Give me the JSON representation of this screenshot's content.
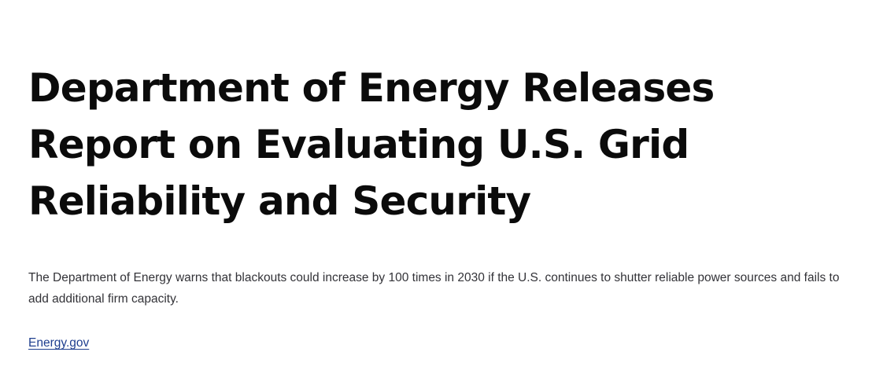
{
  "article": {
    "headline": "Department of Energy Releases Report on Evaluating U.S. Grid Reliability and Security",
    "summary": "The Department of Energy warns that blackouts could increase by 100 times in 2030 if the U.S. continues to shutter reliable power sources and fails to add additional firm capacity.",
    "source_label": "Energy.gov"
  },
  "colors": {
    "headline": "#0b0b0b",
    "body_text": "#333338",
    "link": "#1f3f8f",
    "background": "#ffffff"
  }
}
